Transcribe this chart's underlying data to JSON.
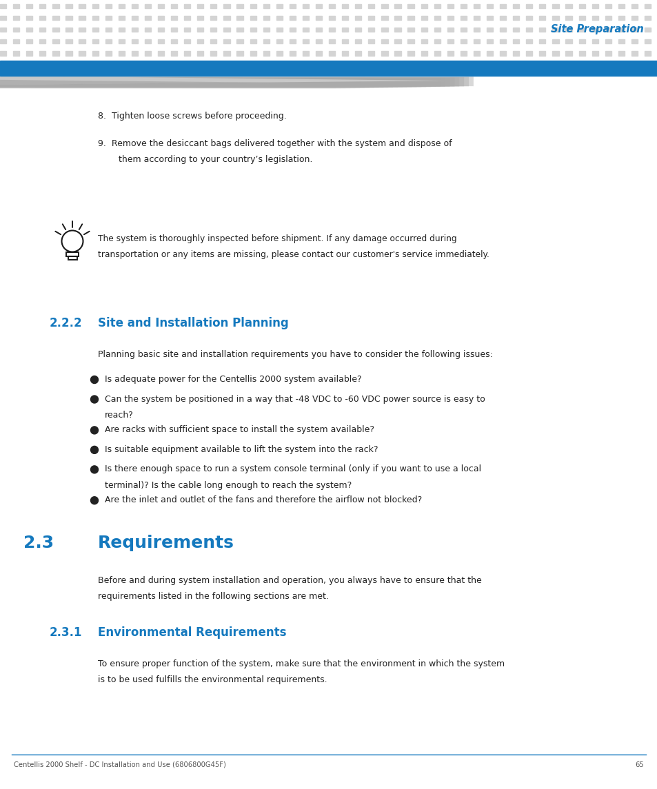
{
  "page_width": 9.54,
  "page_height": 11.45,
  "dpi": 100,
  "bg_color": "#ffffff",
  "header_dot_color": "#d4d4d4",
  "header_blue_bar_color": "#1579be",
  "header_title": "Site Preparation",
  "header_title_color": "#1579be",
  "footer_line_color": "#1579be",
  "footer_text": "Centellis 2000 Shelf - DC Installation and Use (6806800G45F)",
  "footer_page": "65",
  "footer_color": "#555555",
  "body_text_color": "#222222",
  "blue_heading_color": "#1579be",
  "section_222_num": "2.2.2",
  "section_222_title": "Site and Installation Planning",
  "section_23_num": "2.3",
  "section_23_title": "Requirements",
  "section_231_num": "2.3.1",
  "section_231_title": "Environmental Requirements",
  "item8": "8.  Tighten loose screws before proceeding.",
  "item9_line1": "9.  Remove the desiccant bags delivered together with the system and dispose of",
  "item9_line2": "them according to your country’s legislation.",
  "note_line1": "The system is thoroughly inspected before shipment. If any damage occurred during",
  "note_line2": "transportation or any items are missing, please contact our customer's service immediately.",
  "planning_intro": "Planning basic site and installation requirements you have to consider the following issues:",
  "req_intro_line1": "Before and during system installation and operation, you always have to ensure that the",
  "req_intro_line2": "requirements listed in the following sections are met.",
  "env_req_intro_line1": "To ensure proper function of the system, make sure that the environment in which the system",
  "env_req_intro_line2": "is to be used fulfills the environmental requirements."
}
